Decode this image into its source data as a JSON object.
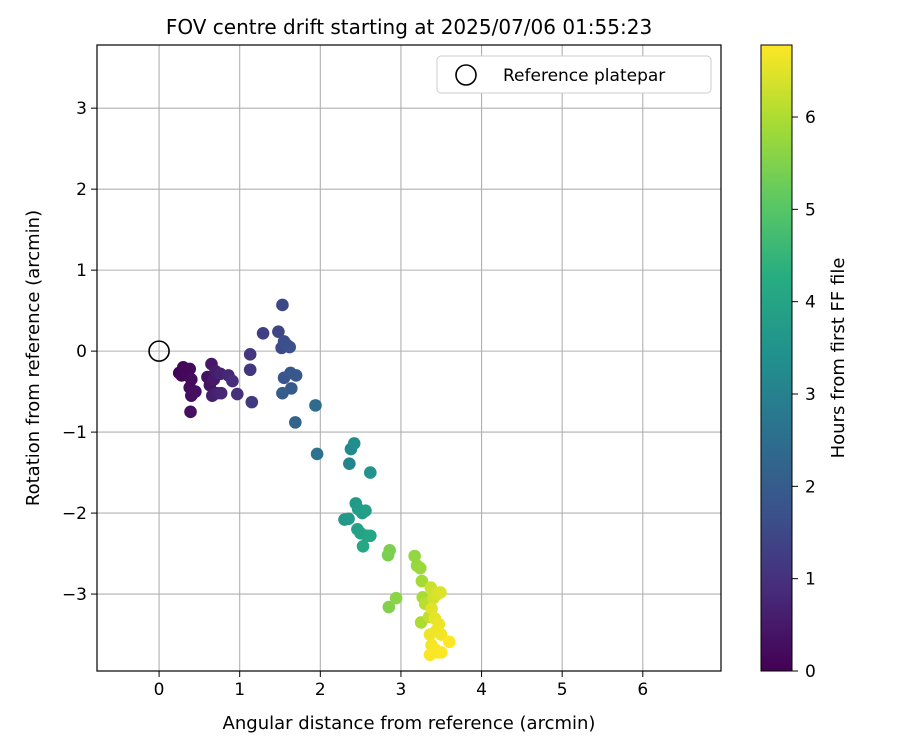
{
  "chart_data": {
    "type": "scatter",
    "title": "FOV centre drift starting at 2025/07/06 01:55:23",
    "xlabel": "Angular distance from reference (arcmin)",
    "ylabel": "Rotation from reference (arcmin)",
    "xlim": [
      -0.77,
      6.97
    ],
    "ylim": [
      -3.95,
      3.78
    ],
    "xticks": [
      0,
      1,
      2,
      3,
      4,
      5,
      6
    ],
    "xtick_labels": [
      "0",
      "1",
      "2",
      "3",
      "4",
      "5",
      "6"
    ],
    "yticks": [
      -3,
      -2,
      -1,
      0,
      1,
      2,
      3
    ],
    "ytick_labels": [
      "−3",
      "−2",
      "−1",
      "0",
      "1",
      "2",
      "3"
    ],
    "grid": true,
    "legend": {
      "location": "upper right",
      "entries": [
        "Reference platepar"
      ]
    },
    "reference_point": {
      "x": 0,
      "y": 0,
      "label": "Reference platepar",
      "marker": "open-circle"
    },
    "colorbar": {
      "label": "Hours from first FF file",
      "colormap": "viridis",
      "range": [
        0,
        6.78
      ],
      "ticks": [
        0,
        1,
        2,
        3,
        4,
        5,
        6
      ],
      "tick_labels": [
        "0",
        "1",
        "2",
        "3",
        "4",
        "5",
        "6"
      ]
    },
    "series": [
      {
        "points": [
          {
            "x": 0.25,
            "y": -0.27,
            "t": 0.05
          },
          {
            "x": 0.3,
            "y": -0.2,
            "t": 0.08
          },
          {
            "x": 0.28,
            "y": -0.3,
            "t": 0.1
          },
          {
            "x": 0.33,
            "y": -0.25,
            "t": 0.12
          },
          {
            "x": 0.36,
            "y": -0.3,
            "t": 0.15
          },
          {
            "x": 0.38,
            "y": -0.22,
            "t": 0.17
          },
          {
            "x": 0.4,
            "y": -0.35,
            "t": 0.2
          },
          {
            "x": 0.38,
            "y": -0.45,
            "t": 0.22
          },
          {
            "x": 0.4,
            "y": -0.55,
            "t": 0.25
          },
          {
            "x": 0.45,
            "y": -0.5,
            "t": 0.28
          },
          {
            "x": 0.39,
            "y": -0.75,
            "t": 0.3
          },
          {
            "x": 0.6,
            "y": -0.32,
            "t": 0.35
          },
          {
            "x": 0.63,
            "y": -0.42,
            "t": 0.4
          },
          {
            "x": 0.65,
            "y": -0.16,
            "t": 0.45
          },
          {
            "x": 0.68,
            "y": -0.35,
            "t": 0.5
          },
          {
            "x": 0.7,
            "y": -0.25,
            "t": 0.55
          },
          {
            "x": 0.66,
            "y": -0.55,
            "t": 0.6
          },
          {
            "x": 0.72,
            "y": -0.52,
            "t": 0.65
          },
          {
            "x": 0.76,
            "y": -0.28,
            "t": 0.7
          },
          {
            "x": 0.77,
            "y": -0.52,
            "t": 0.75
          },
          {
            "x": 0.86,
            "y": -0.3,
            "t": 0.8
          },
          {
            "x": 0.91,
            "y": -0.37,
            "t": 0.9
          },
          {
            "x": 0.97,
            "y": -0.53,
            "t": 1.0
          },
          {
            "x": 1.13,
            "y": -0.04,
            "t": 1.1
          },
          {
            "x": 1.13,
            "y": -0.23,
            "t": 1.15
          },
          {
            "x": 1.15,
            "y": -0.63,
            "t": 1.2
          },
          {
            "x": 1.29,
            "y": 0.22,
            "t": 1.3
          },
          {
            "x": 1.48,
            "y": 0.24,
            "t": 1.45
          },
          {
            "x": 1.53,
            "y": 0.57,
            "t": 1.5
          },
          {
            "x": 1.52,
            "y": 0.04,
            "t": 1.55
          },
          {
            "x": 1.55,
            "y": 0.12,
            "t": 1.6
          },
          {
            "x": 1.58,
            "y": 0.08,
            "t": 1.65
          },
          {
            "x": 1.62,
            "y": 0.05,
            "t": 1.7
          },
          {
            "x": 1.55,
            "y": -0.33,
            "t": 1.8
          },
          {
            "x": 1.63,
            "y": -0.27,
            "t": 1.85
          },
          {
            "x": 1.7,
            "y": -0.3,
            "t": 1.9
          },
          {
            "x": 1.64,
            "y": -0.46,
            "t": 1.95
          },
          {
            "x": 1.53,
            "y": -0.52,
            "t": 2.0
          },
          {
            "x": 1.69,
            "y": -0.88,
            "t": 2.2
          },
          {
            "x": 1.94,
            "y": -0.67,
            "t": 2.4
          },
          {
            "x": 1.96,
            "y": -1.27,
            "t": 2.6
          },
          {
            "x": 2.36,
            "y": -1.39,
            "t": 3.1
          },
          {
            "x": 2.38,
            "y": -1.21,
            "t": 3.2
          },
          {
            "x": 2.42,
            "y": -1.14,
            "t": 3.3
          },
          {
            "x": 2.62,
            "y": -1.5,
            "t": 3.5
          },
          {
            "x": 2.3,
            "y": -2.08,
            "t": 3.6
          },
          {
            "x": 2.35,
            "y": -2.07,
            "t": 3.65
          },
          {
            "x": 2.44,
            "y": -1.88,
            "t": 3.7
          },
          {
            "x": 2.47,
            "y": -1.95,
            "t": 3.75
          },
          {
            "x": 2.52,
            "y": -2.0,
            "t": 3.8
          },
          {
            "x": 2.56,
            "y": -1.97,
            "t": 3.85
          },
          {
            "x": 2.46,
            "y": -2.2,
            "t": 3.9
          },
          {
            "x": 2.5,
            "y": -2.25,
            "t": 3.95
          },
          {
            "x": 2.58,
            "y": -2.28,
            "t": 4.0
          },
          {
            "x": 2.62,
            "y": -2.28,
            "t": 4.05
          },
          {
            "x": 2.53,
            "y": -2.41,
            "t": 4.1
          },
          {
            "x": 2.84,
            "y": -2.52,
            "t": 5.4
          },
          {
            "x": 2.86,
            "y": -2.46,
            "t": 5.45
          },
          {
            "x": 2.85,
            "y": -3.16,
            "t": 5.5
          },
          {
            "x": 2.94,
            "y": -3.05,
            "t": 5.6
          },
          {
            "x": 3.17,
            "y": -2.53,
            "t": 5.7
          },
          {
            "x": 3.2,
            "y": -2.65,
            "t": 5.75
          },
          {
            "x": 3.24,
            "y": -2.68,
            "t": 5.8
          },
          {
            "x": 3.26,
            "y": -2.84,
            "t": 5.9
          },
          {
            "x": 3.27,
            "y": -3.04,
            "t": 5.95
          },
          {
            "x": 3.25,
            "y": -3.35,
            "t": 6.0
          },
          {
            "x": 3.3,
            "y": -3.12,
            "t": 6.1
          },
          {
            "x": 3.35,
            "y": -3.28,
            "t": 6.2
          },
          {
            "x": 3.37,
            "y": -2.92,
            "t": 6.3
          },
          {
            "x": 3.4,
            "y": -3.05,
            "t": 6.35
          },
          {
            "x": 3.45,
            "y": -3.0,
            "t": 6.4
          },
          {
            "x": 3.49,
            "y": -2.98,
            "t": 6.45
          },
          {
            "x": 3.38,
            "y": -3.18,
            "t": 6.5
          },
          {
            "x": 3.42,
            "y": -3.3,
            "t": 6.55
          },
          {
            "x": 3.47,
            "y": -3.37,
            "t": 6.6
          },
          {
            "x": 3.36,
            "y": -3.5,
            "t": 6.62
          },
          {
            "x": 3.44,
            "y": -3.45,
            "t": 6.64
          },
          {
            "x": 3.5,
            "y": -3.5,
            "t": 6.66
          },
          {
            "x": 3.38,
            "y": -3.63,
            "t": 6.68
          },
          {
            "x": 3.43,
            "y": -3.69,
            "t": 6.7
          },
          {
            "x": 3.46,
            "y": -3.72,
            "t": 6.72
          },
          {
            "x": 3.36,
            "y": -3.75,
            "t": 6.74
          },
          {
            "x": 3.5,
            "y": -3.72,
            "t": 6.76
          },
          {
            "x": 3.6,
            "y": -3.59,
            "t": 6.78
          }
        ]
      }
    ]
  }
}
